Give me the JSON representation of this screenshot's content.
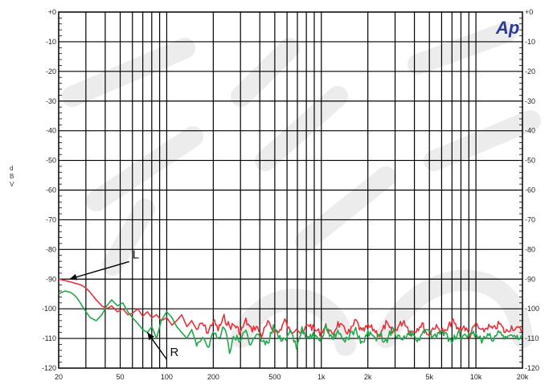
{
  "chart_data": {
    "type": "line",
    "title": "",
    "ylabel": "d B V",
    "xlabel": "",
    "x_scale": "log",
    "xlim": [
      20,
      20000
    ],
    "ylim": [
      -120,
      0
    ],
    "grid": true,
    "x_ticks": [
      {
        "value": 20,
        "label": "20"
      },
      {
        "value": 50,
        "label": "50"
      },
      {
        "value": 100,
        "label": "100"
      },
      {
        "value": 200,
        "label": "200"
      },
      {
        "value": 500,
        "label": "500"
      },
      {
        "value": 1000,
        "label": "1k"
      },
      {
        "value": 2000,
        "label": "2k"
      },
      {
        "value": 5000,
        "label": "5k"
      },
      {
        "value": 10000,
        "label": "10k"
      },
      {
        "value": 20000,
        "label": "20k"
      }
    ],
    "y_ticks_left": [
      {
        "value": 0,
        "label": "+0"
      },
      {
        "value": -10,
        "label": "-10"
      },
      {
        "value": -20,
        "label": "-20"
      },
      {
        "value": -30,
        "label": "-30"
      },
      {
        "value": -40,
        "label": "-40"
      },
      {
        "value": -50,
        "label": "-50"
      },
      {
        "value": -60,
        "label": "-60"
      },
      {
        "value": -70,
        "label": "-70"
      },
      {
        "value": -80,
        "label": "-80"
      },
      {
        "value": -90,
        "label": "-90"
      },
      {
        "value": -100,
        "label": "-100"
      },
      {
        "value": -110,
        "label": "-110"
      },
      {
        "value": -120,
        "label": "-120"
      }
    ],
    "y_ticks_right": [
      {
        "value": 0,
        "label": "+0"
      },
      {
        "value": -10,
        "label": "-10"
      },
      {
        "value": -20,
        "label": "-20"
      },
      {
        "value": -30,
        "label": "-30"
      },
      {
        "value": -40,
        "label": "-40"
      },
      {
        "value": -50,
        "label": "-50"
      },
      {
        "value": -60,
        "label": "-60"
      },
      {
        "value": -70,
        "label": "-70"
      },
      {
        "value": -80,
        "label": "-80"
      },
      {
        "value": -90,
        "label": "-90"
      },
      {
        "value": -100,
        "label": "-100"
      },
      {
        "value": -110,
        "label": "-110"
      },
      {
        "value": -120,
        "label": "-120"
      }
    ],
    "annotations": [
      {
        "text": "L",
        "x": 60,
        "y": -83,
        "arrow_to": {
          "x": 23.5,
          "y": -90
        }
      },
      {
        "text": "R",
        "x": 105,
        "y": -116,
        "arrow_to": {
          "x": 75,
          "y": -108
        }
      }
    ],
    "series": [
      {
        "color": "#e8303a",
        "x": [
          20,
          22,
          24,
          26,
          28,
          30,
          32,
          35,
          38,
          41,
          44,
          48,
          52,
          56,
          60,
          65,
          70,
          75,
          80,
          86,
          92,
          100,
          108,
          116,
          125,
          135,
          145,
          156,
          170,
          185,
          200,
          215,
          235,
          255,
          275,
          300,
          325,
          350,
          380,
          410,
          450,
          490,
          530,
          580,
          630,
          690,
          750,
          820,
          900,
          980,
          1070,
          1170,
          1280,
          1400,
          1530,
          1670,
          1830,
          2000,
          2190,
          2400,
          2620,
          2870,
          3140,
          3430,
          3750,
          4100,
          4480,
          4900,
          5360,
          5860,
          6400,
          7000,
          7650,
          8370,
          9150,
          10000,
          10900,
          11900,
          13000,
          14200,
          15500,
          17000,
          18500,
          20000
        ],
        "y": [
          -90,
          -90.5,
          -91,
          -91.5,
          -92,
          -93,
          -94.5,
          -97,
          -99,
          -100,
          -99,
          -101,
          -100,
          -102,
          -101.5,
          -100,
          -102.5,
          -101,
          -103,
          -102,
          -104,
          -103,
          -105.5,
          -104,
          -102,
          -106,
          -104,
          -107,
          -105,
          -108,
          -104,
          -107,
          -103,
          -106,
          -105.5,
          -108,
          -104,
          -107,
          -106,
          -109,
          -105,
          -107,
          -108,
          -104,
          -108,
          -106,
          -109,
          -105,
          -107,
          -108,
          -106,
          -109,
          -105,
          -107,
          -108,
          -104,
          -108,
          -106,
          -107,
          -109,
          -105,
          -108,
          -106,
          -104,
          -108,
          -107,
          -105,
          -109,
          -106,
          -107,
          -108,
          -104,
          -107,
          -106,
          -109,
          -105,
          -108,
          -106,
          -107,
          -105,
          -108,
          -106,
          -107,
          -107
        ]
      },
      {
        "color": "#1fa84a",
        "x": [
          20,
          22,
          24,
          26,
          28,
          30,
          32,
          35,
          38,
          41,
          44,
          48,
          52,
          56,
          60,
          65,
          70,
          75,
          80,
          86,
          92,
          100,
          108,
          116,
          125,
          135,
          145,
          156,
          170,
          185,
          200,
          215,
          235,
          255,
          275,
          300,
          325,
          350,
          380,
          410,
          450,
          490,
          530,
          580,
          630,
          690,
          750,
          820,
          900,
          980,
          1070,
          1170,
          1280,
          1400,
          1530,
          1670,
          1830,
          2000,
          2190,
          2400,
          2620,
          2870,
          3140,
          3430,
          3750,
          4100,
          4480,
          4900,
          5360,
          5860,
          6400,
          7000,
          7650,
          8370,
          9150,
          10000,
          10900,
          11900,
          13000,
          14200,
          15500,
          17000,
          18500,
          20000
        ],
        "y": [
          -95,
          -94,
          -94.5,
          -96,
          -98.5,
          -101,
          -103,
          -104,
          -102,
          -99,
          -97,
          -99,
          -98,
          -101,
          -103,
          -105,
          -107,
          -108,
          -106,
          -110,
          -104,
          -101,
          -103,
          -106,
          -108,
          -110,
          -107,
          -112,
          -109,
          -113,
          -108,
          -110,
          -106,
          -114,
          -109,
          -111,
          -107,
          -113,
          -108,
          -110,
          -112,
          -106,
          -109,
          -111,
          -108,
          -113,
          -107,
          -110,
          -109,
          -112,
          -106,
          -110,
          -108,
          -111,
          -109,
          -107,
          -112,
          -108,
          -110,
          -109,
          -111,
          -107,
          -109,
          -110,
          -108,
          -111,
          -109,
          -107,
          -110,
          -108,
          -109,
          -111,
          -108,
          -110,
          -109,
          -108,
          -111,
          -109,
          -110,
          -108,
          -110,
          -109,
          -110,
          -109
        ]
      }
    ]
  },
  "logo": {
    "text": "Ap",
    "color": "#2a3b9a"
  }
}
